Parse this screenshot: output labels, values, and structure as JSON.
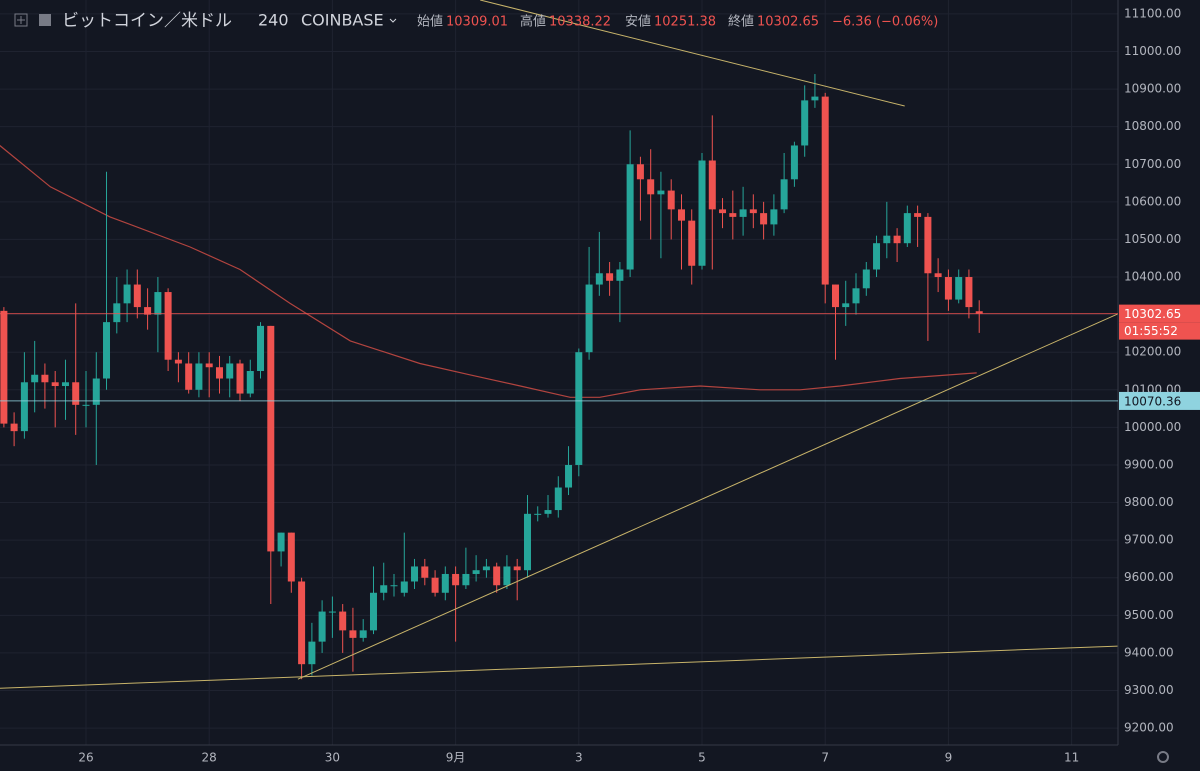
{
  "chart_data": {
    "type": "candlestick",
    "header": {
      "symbol": "ビットコイン／米ドル",
      "interval": "240",
      "exchange": "COINBASE",
      "open_label": "始値",
      "open": "10309.01",
      "high_label": "高値",
      "high": "10338.22",
      "low_label": "安値",
      "low": "10251.38",
      "close_label": "終値",
      "close": "10302.65",
      "change": "−6.36 (−0.06%)"
    },
    "xlim": [
      24.604,
      42.753
    ],
    "xticks": [
      26,
      28,
      30,
      {
        "value": 32,
        "label": "9月"
      },
      {
        "value": 34,
        "label": "3"
      },
      {
        "value": 36,
        "label": "5"
      },
      {
        "value": 38,
        "label": "7"
      },
      {
        "value": 40,
        "label": "9"
      },
      {
        "value": 42,
        "label": "11"
      }
    ],
    "ylim": [
      9155,
      11137
    ],
    "yticks": [
      {
        "value": 9200,
        "label": "9200.00"
      },
      {
        "value": 9300,
        "label": "9300.00"
      },
      {
        "value": 9400,
        "label": "9400.00"
      },
      {
        "value": 9500,
        "label": "9500.00"
      },
      {
        "value": 9600,
        "label": "9600.00"
      },
      {
        "value": 9700,
        "label": "9700.00"
      },
      {
        "value": 9800,
        "label": "9800.00"
      },
      {
        "value": 9900,
        "label": "9900.00"
      },
      {
        "value": 10000,
        "label": "10000.00"
      },
      {
        "value": 10100,
        "label": "10100.00"
      },
      {
        "value": 10200,
        "label": "10200.00"
      },
      {
        "value": 10300,
        "label": "10300.00"
      },
      {
        "value": 10400,
        "label": "10400.00"
      },
      {
        "value": 10500,
        "label": "10500.00"
      },
      {
        "value": 10600,
        "label": "10600.00"
      },
      {
        "value": 10700,
        "label": "10700.00"
      },
      {
        "value": 10800,
        "label": "10800.00"
      },
      {
        "value": 10900,
        "label": "10900.00"
      },
      {
        "value": 11000,
        "label": "11000.00"
      },
      {
        "value": 11100,
        "label": "11100.00"
      }
    ],
    "grid": true,
    "up_color": "#26a69a",
    "down_color": "#ef5350",
    "candles": {
      "x": [
        24.667,
        24.833,
        25,
        25.167,
        25.333,
        25.5,
        25.667,
        25.833,
        26,
        26.167,
        26.333,
        26.5,
        26.667,
        26.833,
        27,
        27.167,
        27.333,
        27.5,
        27.667,
        27.833,
        28,
        28.167,
        28.333,
        28.5,
        28.667,
        28.833,
        29,
        29.167,
        29.333,
        29.5,
        29.667,
        29.833,
        30,
        30.167,
        30.333,
        30.5,
        30.667,
        30.833,
        31,
        31.167,
        31.333,
        31.5,
        31.667,
        31.833,
        32,
        32.167,
        32.333,
        32.5,
        32.667,
        32.833,
        33,
        33.167,
        33.333,
        33.5,
        33.667,
        33.833,
        34,
        34.167,
        34.333,
        34.5,
        34.667,
        34.833,
        35,
        35.167,
        35.333,
        35.5,
        35.667,
        35.833,
        36,
        36.167,
        36.333,
        36.5,
        36.667,
        36.833,
        37,
        37.167,
        37.333,
        37.5,
        37.667,
        37.833,
        38,
        38.167,
        38.333,
        38.5,
        38.667,
        38.833,
        39,
        39.167,
        39.333,
        39.5,
        39.667,
        39.833,
        40,
        40.167,
        40.333,
        40.5
      ],
      "open": [
        10310,
        10010,
        9990,
        10120,
        10140,
        10120,
        10110,
        10120,
        10060,
        10060,
        10130,
        10280,
        10330,
        10380,
        10320,
        10300,
        10360,
        10180,
        10170,
        10100,
        10170,
        10160,
        10130,
        10170,
        10090,
        10150,
        10270,
        9670,
        9720,
        9590,
        9370,
        9430,
        9510,
        9510,
        9460,
        9440,
        9460,
        9560,
        9580,
        9560,
        9590,
        9630,
        9600,
        9560,
        9610,
        9580,
        9610,
        9620,
        9630,
        9580,
        9630,
        9620,
        9770,
        9770,
        9780,
        9840,
        9900,
        10200,
        10380,
        10410,
        10390,
        10420,
        10700,
        10660,
        10620,
        10630,
        10580,
        10550,
        10430,
        10710,
        10580,
        10570,
        10560,
        10580,
        10570,
        10540,
        10580,
        10660,
        10750,
        10870,
        10880,
        10380,
        10320,
        10330,
        10370,
        10420,
        10490,
        10510,
        10490,
        10570,
        10560,
        10410,
        10400,
        10340,
        10400,
        10309.01
      ],
      "high": [
        10320,
        10040,
        10200,
        10230,
        10170,
        10150,
        10180,
        10330,
        10150,
        10200,
        10680,
        10400,
        10420,
        10420,
        10370,
        10400,
        10370,
        10200,
        10200,
        10200,
        10200,
        10190,
        10190,
        10180,
        10180,
        10280,
        10270,
        9720,
        9720,
        9600,
        9480,
        9540,
        9550,
        9530,
        9520,
        9490,
        9630,
        9640,
        9610,
        9720,
        9650,
        9650,
        9620,
        9630,
        9630,
        9680,
        9660,
        9650,
        9640,
        9660,
        9650,
        9820,
        9790,
        9820,
        9870,
        9950,
        10210,
        10480,
        10520,
        10440,
        10440,
        10790,
        10720,
        10740,
        10680,
        10660,
        10620,
        10580,
        10730,
        10830,
        10610,
        10630,
        10640,
        10620,
        10600,
        10620,
        10730,
        10760,
        10910,
        10940,
        10890,
        10380,
        10390,
        10410,
        10440,
        10510,
        10600,
        10530,
        10590,
        10590,
        10570,
        10450,
        10420,
        10420,
        10420,
        10338.22
      ],
      "low": [
        10000,
        9950,
        9970,
        10040,
        10050,
        10000,
        10020,
        9980,
        10000,
        9900,
        10100,
        10250,
        10280,
        10290,
        10260,
        10200,
        10150,
        10120,
        10090,
        10080,
        10080,
        10090,
        10080,
        10070,
        10080,
        10130,
        9530,
        9630,
        9560,
        9330,
        9340,
        9400,
        9440,
        9400,
        9350,
        9430,
        9450,
        9540,
        9550,
        9550,
        9570,
        9580,
        9550,
        9540,
        9430,
        9570,
        9590,
        9600,
        9560,
        9570,
        9540,
        9600,
        9750,
        9760,
        9760,
        9820,
        9870,
        10180,
        10350,
        10350,
        10280,
        10400,
        10550,
        10500,
        10450,
        10500,
        10420,
        10380,
        10420,
        10420,
        10530,
        10500,
        10510,
        10530,
        10500,
        10510,
        10570,
        10640,
        10720,
        10850,
        10330,
        10180,
        10270,
        10300,
        10350,
        10400,
        10450,
        10440,
        10480,
        10480,
        10230,
        10360,
        10310,
        10330,
        10290,
        10251.38
      ],
      "close": [
        10010,
        9990,
        10120,
        10140,
        10120,
        10110,
        10120,
        10060,
        10060,
        10130,
        10280,
        10330,
        10380,
        10320,
        10300,
        10360,
        10180,
        10170,
        10100,
        10170,
        10160,
        10130,
        10170,
        10090,
        10150,
        10270,
        9670,
        9720,
        9590,
        9370,
        9430,
        9510,
        9510,
        9460,
        9440,
        9460,
        9560,
        9580,
        9580,
        9590,
        9630,
        9600,
        9560,
        9610,
        9580,
        9610,
        9620,
        9630,
        9580,
        9630,
        9620,
        9770,
        9770,
        9780,
        9840,
        9900,
        10200,
        10380,
        10410,
        10390,
        10420,
        10700,
        10660,
        10620,
        10630,
        10580,
        10550,
        10430,
        10710,
        10580,
        10570,
        10560,
        10580,
        10570,
        10540,
        10580,
        10660,
        10750,
        10870,
        10880,
        10380,
        10320,
        10330,
        10370,
        10420,
        10490,
        10510,
        10490,
        10570,
        10560,
        10410,
        10400,
        10340,
        10400,
        10320,
        10302.65
      ]
    },
    "moving_average": {
      "color": "#b2443f",
      "x": [
        24.6,
        25.42,
        26.39,
        27.69,
        28.5,
        29.31,
        30.29,
        31.42,
        32.23,
        33.05,
        33.86,
        34.34,
        35.0,
        35.97,
        36.94,
        37.59,
        38.24,
        39.21,
        40.46
      ],
      "values": [
        10750,
        10640,
        10560,
        10480,
        10420,
        10330,
        10230,
        10170,
        10140,
        10110,
        10080,
        10080,
        10100,
        10110,
        10100,
        10100,
        10110,
        10130,
        10145
      ]
    },
    "trend_lines": [
      {
        "color": "#c8b46a",
        "x": [
          32.4,
          39.29
        ],
        "values": [
          11137,
          10855
        ]
      },
      {
        "color": "#c8b46a",
        "x": [
          29.44,
          42.75
        ],
        "values": [
          9330,
          10302
        ]
      },
      {
        "color": "#c8b46a",
        "x": [
          24.6,
          42.75
        ],
        "values": [
          9306,
          9418
        ]
      }
    ],
    "price_lines": [
      {
        "value": 10302.65,
        "color": "#ef5350",
        "countdown": "01:55:52"
      },
      {
        "value": 10070.36,
        "color": "#8fd3df"
      }
    ]
  }
}
